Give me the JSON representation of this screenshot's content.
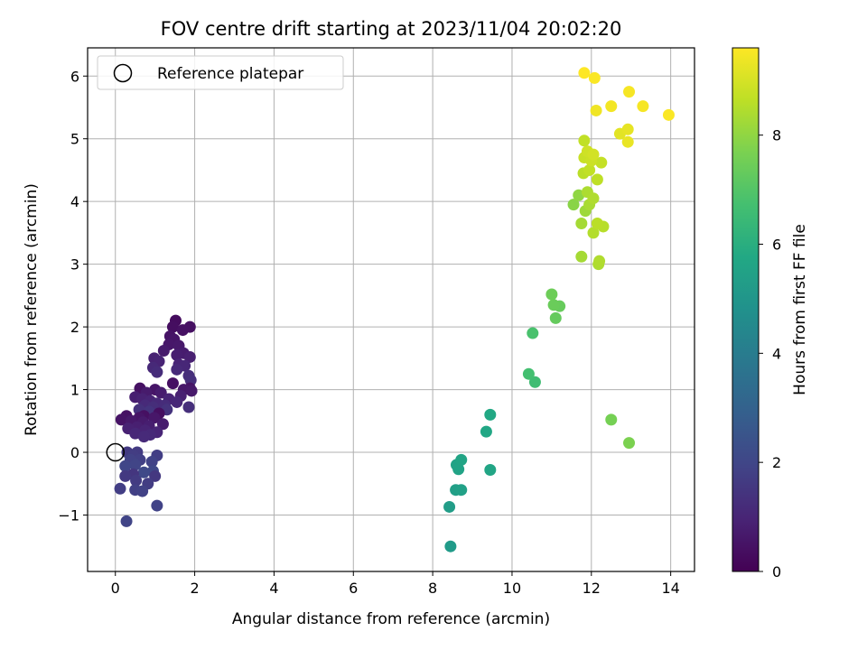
{
  "chart_data": {
    "type": "scatter",
    "title": "FOV centre drift starting at 2023/11/04 20:02:20",
    "xlabel": "Angular distance from reference (arcmin)",
    "ylabel": "Rotation from reference (arcmin)",
    "xlim": [
      -0.7,
      14.6
    ],
    "ylim": [
      -1.9,
      6.45
    ],
    "xticks": [
      0,
      2,
      4,
      6,
      8,
      10,
      12,
      14
    ],
    "yticks": [
      -1,
      0,
      1,
      2,
      3,
      4,
      5,
      6
    ],
    "grid": true,
    "legend": {
      "position": "top-left",
      "entries": [
        "Reference platepar"
      ]
    },
    "reference_point": {
      "x": 0,
      "y": 0,
      "label": "Reference platepar"
    },
    "colorbar": {
      "label": "Hours from first FF file",
      "colormap": "viridis",
      "range": [
        0,
        9.6
      ],
      "ticks": [
        0,
        2,
        4,
        6,
        8
      ]
    },
    "points": [
      {
        "x": 1.52,
        "y": 2.1,
        "t": 0.3
      },
      {
        "x": 1.45,
        "y": 2.0,
        "t": 0.35
      },
      {
        "x": 1.88,
        "y": 2.0,
        "t": 0.4
      },
      {
        "x": 1.7,
        "y": 1.95,
        "t": 0.45
      },
      {
        "x": 1.38,
        "y": 1.85,
        "t": 0.5
      },
      {
        "x": 1.48,
        "y": 1.8,
        "t": 0.55
      },
      {
        "x": 1.35,
        "y": 1.72,
        "t": 0.6
      },
      {
        "x": 1.6,
        "y": 1.7,
        "t": 0.65
      },
      {
        "x": 1.22,
        "y": 1.62,
        "t": 0.7
      },
      {
        "x": 1.72,
        "y": 1.58,
        "t": 0.75
      },
      {
        "x": 1.55,
        "y": 1.55,
        "t": 0.8
      },
      {
        "x": 1.88,
        "y": 1.52,
        "t": 0.85
      },
      {
        "x": 0.98,
        "y": 1.5,
        "t": 0.9
      },
      {
        "x": 1.1,
        "y": 1.45,
        "t": 0.95
      },
      {
        "x": 1.6,
        "y": 1.4,
        "t": 1.0
      },
      {
        "x": 1.75,
        "y": 1.38,
        "t": 1.05
      },
      {
        "x": 0.95,
        "y": 1.35,
        "t": 1.1
      },
      {
        "x": 1.55,
        "y": 1.32,
        "t": 1.15
      },
      {
        "x": 1.05,
        "y": 1.28,
        "t": 1.2
      },
      {
        "x": 1.85,
        "y": 1.22,
        "t": 1.25
      },
      {
        "x": 1.9,
        "y": 1.15,
        "t": 1.3
      },
      {
        "x": 1.45,
        "y": 1.1,
        "t": 0.4
      },
      {
        "x": 0.62,
        "y": 1.02,
        "t": 0.45
      },
      {
        "x": 1.88,
        "y": 1.02,
        "t": 0.5
      },
      {
        "x": 1.0,
        "y": 1.0,
        "t": 0.55
      },
      {
        "x": 1.72,
        "y": 1.0,
        "t": 0.6
      },
      {
        "x": 1.92,
        "y": 0.98,
        "t": 0.65
      },
      {
        "x": 0.78,
        "y": 0.95,
        "t": 0.7
      },
      {
        "x": 1.15,
        "y": 0.95,
        "t": 0.75
      },
      {
        "x": 0.5,
        "y": 0.88,
        "t": 0.8
      },
      {
        "x": 1.65,
        "y": 0.9,
        "t": 0.85
      },
      {
        "x": 0.68,
        "y": 0.85,
        "t": 0.9
      },
      {
        "x": 1.35,
        "y": 0.85,
        "t": 0.95
      },
      {
        "x": 0.88,
        "y": 0.82,
        "t": 1.0
      },
      {
        "x": 1.55,
        "y": 0.8,
        "t": 1.05
      },
      {
        "x": 1.05,
        "y": 0.78,
        "t": 1.1
      },
      {
        "x": 0.75,
        "y": 0.75,
        "t": 1.15
      },
      {
        "x": 1.25,
        "y": 0.75,
        "t": 1.2
      },
      {
        "x": 0.95,
        "y": 0.72,
        "t": 1.25
      },
      {
        "x": 1.85,
        "y": 0.72,
        "t": 1.3
      },
      {
        "x": 0.6,
        "y": 0.68,
        "t": 1.35
      },
      {
        "x": 1.3,
        "y": 0.68,
        "t": 1.4
      },
      {
        "x": 0.85,
        "y": 0.65,
        "t": 1.45
      },
      {
        "x": 1.1,
        "y": 0.62,
        "t": 0.35
      },
      {
        "x": 0.72,
        "y": 0.58,
        "t": 0.4
      },
      {
        "x": 0.28,
        "y": 0.58,
        "t": 0.45
      },
      {
        "x": 0.15,
        "y": 0.52,
        "t": 0.5
      },
      {
        "x": 0.6,
        "y": 0.55,
        "t": 0.55
      },
      {
        "x": 0.98,
        "y": 0.55,
        "t": 0.6
      },
      {
        "x": 0.4,
        "y": 0.5,
        "t": 0.65
      },
      {
        "x": 0.7,
        "y": 0.48,
        "t": 0.7
      },
      {
        "x": 1.2,
        "y": 0.45,
        "t": 0.75
      },
      {
        "x": 0.85,
        "y": 0.42,
        "t": 0.8
      },
      {
        "x": 0.55,
        "y": 0.4,
        "t": 0.85
      },
      {
        "x": 0.32,
        "y": 0.38,
        "t": 0.9
      },
      {
        "x": 0.75,
        "y": 0.35,
        "t": 0.95
      },
      {
        "x": 1.05,
        "y": 0.32,
        "t": 1.0
      },
      {
        "x": 0.5,
        "y": 0.3,
        "t": 1.05
      },
      {
        "x": 0.88,
        "y": 0.28,
        "t": 1.1
      },
      {
        "x": 0.72,
        "y": 0.25,
        "t": 1.15
      },
      {
        "x": 0.3,
        "y": 0.0,
        "t": 1.6
      },
      {
        "x": 0.55,
        "y": 0.0,
        "t": 1.65
      },
      {
        "x": 0.45,
        "y": -0.05,
        "t": 1.7
      },
      {
        "x": 1.05,
        "y": -0.05,
        "t": 1.75
      },
      {
        "x": 0.62,
        "y": -0.12,
        "t": 1.8
      },
      {
        "x": 0.38,
        "y": -0.12,
        "t": 1.85
      },
      {
        "x": 0.92,
        "y": -0.15,
        "t": 1.9
      },
      {
        "x": 0.5,
        "y": -0.2,
        "t": 1.95
      },
      {
        "x": 0.25,
        "y": -0.22,
        "t": 2.0
      },
      {
        "x": 0.95,
        "y": -0.3,
        "t": 2.05
      },
      {
        "x": 0.72,
        "y": -0.32,
        "t": 2.1
      },
      {
        "x": 0.45,
        "y": -0.35,
        "t": 1.5
      },
      {
        "x": 1.0,
        "y": -0.38,
        "t": 1.55
      },
      {
        "x": 0.25,
        "y": -0.38,
        "t": 1.6
      },
      {
        "x": 0.52,
        "y": -0.45,
        "t": 1.65
      },
      {
        "x": 0.82,
        "y": -0.5,
        "t": 1.7
      },
      {
        "x": 0.12,
        "y": -0.58,
        "t": 1.75
      },
      {
        "x": 0.5,
        "y": -0.6,
        "t": 1.8
      },
      {
        "x": 0.68,
        "y": -0.62,
        "t": 1.85
      },
      {
        "x": 1.05,
        "y": -0.85,
        "t": 1.9
      },
      {
        "x": 0.28,
        "y": -1.1,
        "t": 1.95
      },
      {
        "x": 8.45,
        "y": -1.5,
        "t": 5.2
      },
      {
        "x": 8.42,
        "y": -0.87,
        "t": 5.3
      },
      {
        "x": 8.58,
        "y": -0.6,
        "t": 5.4
      },
      {
        "x": 8.72,
        "y": -0.6,
        "t": 5.45
      },
      {
        "x": 8.6,
        "y": -0.2,
        "t": 5.5
      },
      {
        "x": 8.65,
        "y": -0.27,
        "t": 5.55
      },
      {
        "x": 8.72,
        "y": -0.12,
        "t": 5.6
      },
      {
        "x": 9.45,
        "y": -0.28,
        "t": 5.65
      },
      {
        "x": 9.35,
        "y": 0.33,
        "t": 5.7
      },
      {
        "x": 9.45,
        "y": 0.6,
        "t": 5.75
      },
      {
        "x": 10.58,
        "y": 1.12,
        "t": 6.6
      },
      {
        "x": 10.42,
        "y": 1.25,
        "t": 6.7
      },
      {
        "x": 10.52,
        "y": 1.9,
        "t": 6.8
      },
      {
        "x": 11.1,
        "y": 2.14,
        "t": 7.3
      },
      {
        "x": 11.2,
        "y": 2.33,
        "t": 7.35
      },
      {
        "x": 11.05,
        "y": 2.35,
        "t": 7.4
      },
      {
        "x": 11.0,
        "y": 2.52,
        "t": 7.45
      },
      {
        "x": 12.5,
        "y": 0.52,
        "t": 7.6
      },
      {
        "x": 12.95,
        "y": 0.15,
        "t": 7.7
      },
      {
        "x": 11.75,
        "y": 3.12,
        "t": 8.3
      },
      {
        "x": 12.18,
        "y": 3.0,
        "t": 8.4
      },
      {
        "x": 12.2,
        "y": 3.05,
        "t": 8.45
      },
      {
        "x": 12.05,
        "y": 3.5,
        "t": 8.5
      },
      {
        "x": 12.3,
        "y": 3.6,
        "t": 8.55
      },
      {
        "x": 12.15,
        "y": 3.65,
        "t": 8.6
      },
      {
        "x": 11.75,
        "y": 3.65,
        "t": 8.3
      },
      {
        "x": 11.85,
        "y": 3.85,
        "t": 8.2
      },
      {
        "x": 11.95,
        "y": 3.95,
        "t": 8.35
      },
      {
        "x": 11.55,
        "y": 3.95,
        "t": 7.9
      },
      {
        "x": 11.68,
        "y": 4.1,
        "t": 8.0
      },
      {
        "x": 11.9,
        "y": 4.15,
        "t": 8.4
      },
      {
        "x": 12.05,
        "y": 4.05,
        "t": 8.45
      },
      {
        "x": 11.8,
        "y": 4.45,
        "t": 8.6
      },
      {
        "x": 12.15,
        "y": 4.35,
        "t": 8.65
      },
      {
        "x": 11.95,
        "y": 4.5,
        "t": 8.7
      },
      {
        "x": 12.25,
        "y": 4.62,
        "t": 8.75
      },
      {
        "x": 11.82,
        "y": 4.7,
        "t": 8.8
      },
      {
        "x": 12.0,
        "y": 4.65,
        "t": 8.85
      },
      {
        "x": 11.9,
        "y": 4.8,
        "t": 8.9
      },
      {
        "x": 12.05,
        "y": 4.75,
        "t": 8.95
      },
      {
        "x": 11.82,
        "y": 4.97,
        "t": 8.7
      },
      {
        "x": 12.92,
        "y": 4.95,
        "t": 9.3
      },
      {
        "x": 12.72,
        "y": 5.08,
        "t": 9.2
      },
      {
        "x": 12.92,
        "y": 5.15,
        "t": 9.25
      },
      {
        "x": 12.12,
        "y": 5.45,
        "t": 9.4
      },
      {
        "x": 12.5,
        "y": 5.52,
        "t": 9.45
      },
      {
        "x": 13.3,
        "y": 5.52,
        "t": 9.5
      },
      {
        "x": 13.95,
        "y": 5.38,
        "t": 9.55
      },
      {
        "x": 12.95,
        "y": 5.75,
        "t": 9.5
      },
      {
        "x": 12.08,
        "y": 5.97,
        "t": 9.55
      },
      {
        "x": 11.82,
        "y": 6.05,
        "t": 9.6
      }
    ]
  }
}
